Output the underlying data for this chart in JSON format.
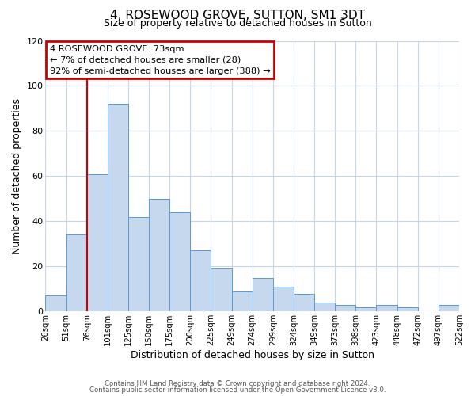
{
  "title": "4, ROSEWOOD GROVE, SUTTON, SM1 3DT",
  "subtitle": "Size of property relative to detached houses in Sutton",
  "xlabel": "Distribution of detached houses by size in Sutton",
  "ylabel": "Number of detached properties",
  "bar_color": "#c5d8ee",
  "bar_edge_color": "#5b9bd5",
  "background_color": "#ffffff",
  "grid_color": "#c8d4e8",
  "bin_labels": [
    "26sqm",
    "51sqm",
    "76sqm",
    "101sqm",
    "125sqm",
    "150sqm",
    "175sqm",
    "200sqm",
    "225sqm",
    "249sqm",
    "274sqm",
    "299sqm",
    "324sqm",
    "349sqm",
    "373sqm",
    "398sqm",
    "423sqm",
    "448sqm",
    "472sqm",
    "497sqm",
    "522sqm"
  ],
  "bar_heights": [
    7,
    34,
    61,
    92,
    42,
    50,
    44,
    27,
    19,
    9,
    15,
    11,
    8,
    4,
    3,
    2,
    3,
    2,
    0,
    3
  ],
  "ylim": [
    0,
    120
  ],
  "yticks": [
    0,
    20,
    40,
    60,
    80,
    100,
    120
  ],
  "property_bar_index": 2,
  "annotation_title": "4 ROSEWOOD GROVE: 73sqm",
  "annotation_line1": "← 7% of detached houses are smaller (28)",
  "annotation_line2": "92% of semi-detached houses are larger (388) →",
  "annotation_box_color": "#cc0000",
  "footer_line1": "Contains HM Land Registry data © Crown copyright and database right 2024.",
  "footer_line2": "Contains public sector information licensed under the Open Government Licence v3.0."
}
